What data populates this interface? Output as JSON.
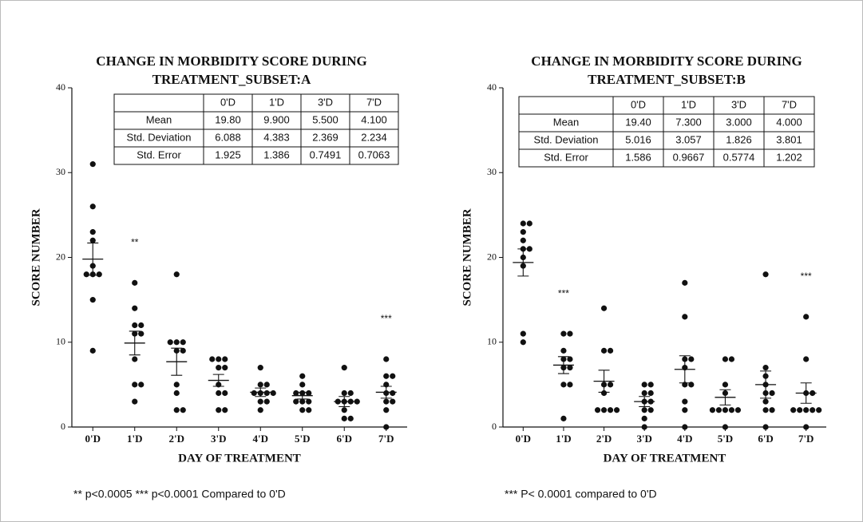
{
  "chart_data": [
    {
      "type": "scatter",
      "title": [
        "CHANGE IN MORBIDITY SCORE DURING",
        "TREATMENT_SUBSET:A"
      ],
      "xlabel": "DAY OF TREATMENT",
      "ylabel": "SCORE NUMBER",
      "categories": [
        "0'D",
        "1'D",
        "2'D",
        "3'D",
        "4'D",
        "5'D",
        "6'D",
        "7'D"
      ],
      "groups": [
        {
          "points": [
            31,
            26,
            23,
            22,
            19,
            18,
            18,
            18,
            15,
            9
          ],
          "mean": 19.8,
          "sem": 1.9
        },
        {
          "points": [
            17,
            14,
            12,
            12,
            11,
            11,
            8,
            5,
            5,
            3
          ],
          "mean": 9.9,
          "sem": 1.4
        },
        {
          "points": [
            18,
            10,
            10,
            10,
            9,
            9,
            5,
            4,
            2,
            2
          ],
          "mean": 7.7,
          "sem": 1.6
        },
        {
          "points": [
            8,
            8,
            8,
            7,
            7,
            5,
            4,
            4,
            2,
            2
          ],
          "mean": 5.5,
          "sem": 0.7
        },
        {
          "points": [
            7,
            5,
            5,
            4,
            4,
            4,
            4,
            3,
            3,
            2
          ],
          "mean": 4.1,
          "sem": 0.5
        },
        {
          "points": [
            6,
            5,
            4,
            4,
            4,
            3,
            3,
            3,
            2,
            2
          ],
          "mean": 3.7,
          "sem": 0.4
        },
        {
          "points": [
            7,
            4,
            4,
            3,
            3,
            3,
            3,
            2,
            1,
            1
          ],
          "mean": 3.0,
          "sem": 0.6
        },
        {
          "points": [
            8,
            6,
            6,
            5,
            4,
            4,
            3,
            3,
            2,
            0
          ],
          "mean": 4.1,
          "sem": 0.7
        }
      ],
      "annotations": [
        {
          "category": "1'D",
          "text": "**"
        },
        {
          "category": "7'D",
          "text": "***"
        }
      ],
      "ylim": [
        0,
        40
      ],
      "yticks": [
        0,
        10,
        20,
        30,
        40
      ],
      "color": "#111111",
      "table": {
        "columns": [
          "0'D",
          "1'D",
          "3'D",
          "7'D"
        ],
        "rows": [
          [
            "Mean",
            "19.80",
            "9.900",
            "5.500",
            "4.100"
          ],
          [
            "Std. Deviation",
            "6.088",
            "4.383",
            "2.369",
            "2.234"
          ],
          [
            "Std. Error",
            "1.925",
            "1.386",
            "0.7491",
            "0.7063"
          ]
        ]
      },
      "footnote": "** p<0.0005 *** p<0.0001 Compared to 0'D"
    },
    {
      "type": "scatter",
      "title": [
        "CHANGE IN MORBIDITY SCORE DURING",
        "TREATMENT_SUBSET:B"
      ],
      "xlabel": "DAY OF TREATMENT",
      "ylabel": "SCORE NUMBER",
      "categories": [
        "0'D",
        "1'D",
        "2'D",
        "3'D",
        "4'D",
        "5'D",
        "6'D",
        "7'D"
      ],
      "groups": [
        {
          "points": [
            24,
            24,
            23,
            22,
            21,
            21,
            20,
            19,
            11,
            10
          ],
          "mean": 19.4,
          "sem": 1.6
        },
        {
          "points": [
            11,
            11,
            9,
            8,
            8,
            7,
            7,
            5,
            5,
            1
          ],
          "mean": 7.3,
          "sem": 1.0
        },
        {
          "points": [
            14,
            9,
            9,
            5,
            5,
            4,
            2,
            2,
            2,
            2
          ],
          "mean": 5.4,
          "sem": 1.3
        },
        {
          "points": [
            5,
            5,
            4,
            4,
            3,
            3,
            2,
            2,
            1,
            0
          ],
          "mean": 3.0,
          "sem": 0.6
        },
        {
          "points": [
            17,
            13,
            8,
            8,
            7,
            5,
            5,
            3,
            2,
            0
          ],
          "mean": 6.8,
          "sem": 1.6
        },
        {
          "points": [
            8,
            8,
            5,
            4,
            2,
            2,
            2,
            2,
            2,
            0
          ],
          "mean": 3.5,
          "sem": 0.9
        },
        {
          "points": [
            18,
            7,
            6,
            5,
            4,
            4,
            3,
            2,
            2,
            0
          ],
          "mean": 5.0,
          "sem": 1.6
        },
        {
          "points": [
            13,
            8,
            4,
            4,
            2,
            2,
            2,
            2,
            2,
            0
          ],
          "mean": 4.0,
          "sem": 1.2
        }
      ],
      "annotations": [
        {
          "category": "1'D",
          "text": "***"
        },
        {
          "category": "7'D",
          "text": "***"
        }
      ],
      "ylim": [
        0,
        40
      ],
      "yticks": [
        0,
        10,
        20,
        30,
        40
      ],
      "color": "#111111",
      "table": {
        "columns": [
          "0'D",
          "1'D",
          "3'D",
          "7'D"
        ],
        "rows": [
          [
            "Mean",
            "19.40",
            "7.300",
            "3.000",
            "4.000"
          ],
          [
            "Std. Deviation",
            "5.016",
            "3.057",
            "1.826",
            "3.801"
          ],
          [
            "Std. Error",
            "1.586",
            "0.9667",
            "0.5774",
            "1.202"
          ]
        ]
      },
      "footnote": "*** P< 0.0001 compared to 0'D"
    }
  ]
}
